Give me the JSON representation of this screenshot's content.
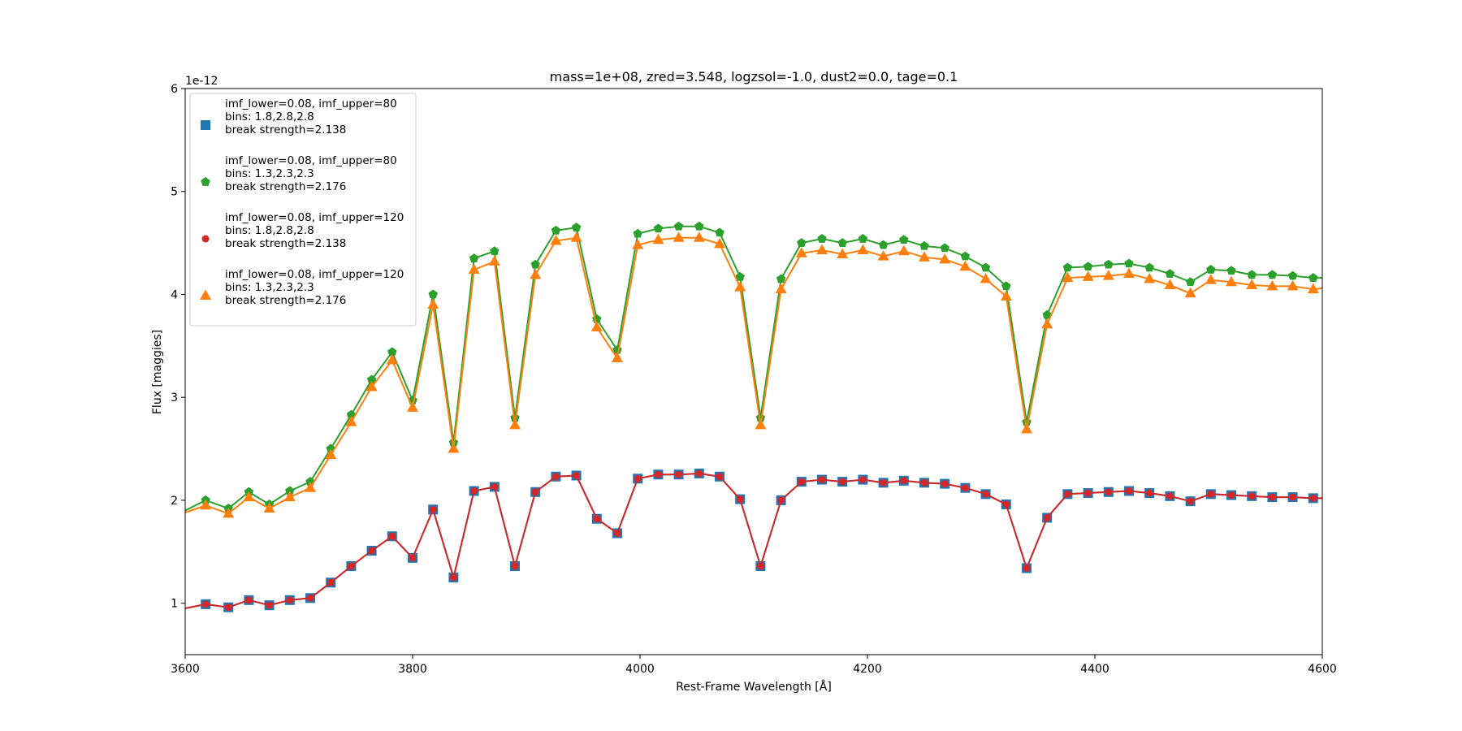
{
  "chart_data": {
    "type": "line",
    "title": "mass=1e+08, zred=3.548, logzsol=-1.0, dust2=0.0, tage=0.1",
    "xlabel": "Rest-Frame Wavelength [Å]",
    "ylabel": "Flux [maggies]",
    "y_offset_label": "1e-12",
    "y_scale": 1e-12,
    "xlim": [
      3600,
      4600
    ],
    "ylim": [
      0.5,
      6
    ],
    "xticks": [
      3600,
      3800,
      4000,
      4200,
      4400,
      4600
    ],
    "yticks": [
      1,
      2,
      3,
      4,
      5,
      6
    ],
    "grid": false,
    "legend_position": "upper left",
    "x": [
      3600,
      3618,
      3638,
      3656,
      3674,
      3692,
      3710,
      3728,
      3746,
      3764,
      3782,
      3800,
      3818,
      3836,
      3854,
      3872,
      3890,
      3908,
      3926,
      3944,
      3962,
      3980,
      3998,
      4016,
      4034,
      4052,
      4070,
      4088,
      4106,
      4124,
      4142,
      4160,
      4178,
      4196,
      4214,
      4232,
      4250,
      4268,
      4286,
      4304,
      4322,
      4340,
      4358,
      4376,
      4394,
      4412,
      4430,
      4448,
      4466,
      4484,
      4502,
      4520,
      4538,
      4556,
      4574,
      4592,
      4600
    ],
    "series": [
      {
        "name": "imf_lower=0.08, imf_upper=80\nbins: 1.8,2.8,2.8\nbreak strength=2.138",
        "color": "#1f77b4",
        "marker": "square",
        "values": [
          0.95,
          0.99,
          0.96,
          1.03,
          0.98,
          1.03,
          1.05,
          1.2,
          1.36,
          1.51,
          1.65,
          1.44,
          1.91,
          1.25,
          2.09,
          2.13,
          1.36,
          2.08,
          2.23,
          2.24,
          1.82,
          1.68,
          2.21,
          2.25,
          2.25,
          2.26,
          2.23,
          2.01,
          1.36,
          2.0,
          2.18,
          2.2,
          2.18,
          2.2,
          2.17,
          2.19,
          2.17,
          2.16,
          2.12,
          2.06,
          1.96,
          1.34,
          1.83,
          2.06,
          2.07,
          2.08,
          2.09,
          2.07,
          2.04,
          1.99,
          2.06,
          2.05,
          2.04,
          2.03,
          2.03,
          2.02,
          2.02
        ]
      },
      {
        "name": "imf_lower=0.08, imf_upper=80\nbins: 1.3,2.3,2.3\nbreak strength=2.176",
        "color": "#2ca02c",
        "marker": "pentagon",
        "values": [
          1.9,
          2.0,
          1.92,
          2.08,
          1.96,
          2.09,
          2.18,
          2.5,
          2.83,
          3.17,
          3.44,
          2.97,
          4.0,
          2.56,
          4.35,
          4.42,
          2.8,
          4.29,
          4.62,
          4.65,
          3.76,
          3.46,
          4.59,
          4.64,
          4.66,
          4.66,
          4.6,
          4.17,
          2.8,
          4.15,
          4.5,
          4.54,
          4.5,
          4.54,
          4.48,
          4.53,
          4.47,
          4.45,
          4.37,
          4.26,
          4.08,
          2.76,
          3.8,
          4.26,
          4.27,
          4.29,
          4.3,
          4.26,
          4.2,
          4.12,
          4.24,
          4.23,
          4.19,
          4.19,
          4.18,
          4.16,
          4.16
        ]
      },
      {
        "name": "imf_lower=0.08, imf_upper=120\nbins: 1.8,2.8,2.8\nbreak strength=2.138",
        "color": "#d62728",
        "marker": "circle",
        "values": [
          0.95,
          0.99,
          0.96,
          1.03,
          0.98,
          1.03,
          1.05,
          1.2,
          1.36,
          1.51,
          1.65,
          1.44,
          1.91,
          1.25,
          2.09,
          2.13,
          1.36,
          2.08,
          2.23,
          2.24,
          1.82,
          1.68,
          2.21,
          2.25,
          2.25,
          2.26,
          2.23,
          2.01,
          1.36,
          2.0,
          2.18,
          2.2,
          2.18,
          2.2,
          2.17,
          2.19,
          2.17,
          2.16,
          2.12,
          2.06,
          1.96,
          1.34,
          1.83,
          2.06,
          2.07,
          2.08,
          2.09,
          2.07,
          2.04,
          1.99,
          2.06,
          2.05,
          2.04,
          2.03,
          2.03,
          2.02,
          2.02
        ]
      },
      {
        "name": "imf_lower=0.08, imf_upper=120\nbins: 1.3,2.3,2.3\nbreak strength=2.176",
        "color": "#ff7f0e",
        "marker": "triangle",
        "values": [
          1.88,
          1.95,
          1.87,
          2.03,
          1.92,
          2.03,
          2.12,
          2.44,
          2.76,
          3.1,
          3.36,
          2.9,
          3.9,
          2.5,
          4.24,
          4.32,
          2.73,
          4.19,
          4.52,
          4.55,
          3.68,
          3.38,
          4.48,
          4.53,
          4.55,
          4.55,
          4.49,
          4.07,
          2.73,
          4.05,
          4.4,
          4.43,
          4.39,
          4.43,
          4.37,
          4.42,
          4.36,
          4.34,
          4.27,
          4.15,
          3.98,
          2.69,
          3.71,
          4.16,
          4.17,
          4.18,
          4.2,
          4.15,
          4.09,
          4.01,
          4.14,
          4.12,
          4.09,
          4.08,
          4.08,
          4.05,
          4.06
        ]
      }
    ]
  }
}
